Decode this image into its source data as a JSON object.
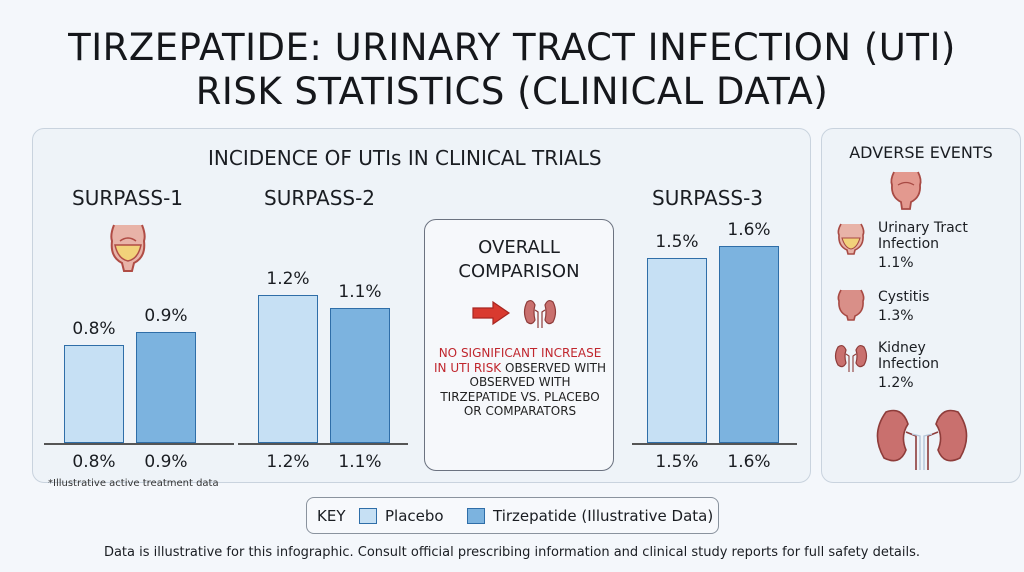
{
  "title_line1": "TIRZEPATIDE: URINARY TRACT INFECTION (UTI)",
  "title_line2": "RISK STATISTICS (CLINICAL DATA)",
  "chart_data": {
    "type": "bar",
    "title": "INCIDENCE OF UTIs IN CLINICAL TRIALS",
    "categories": [
      "SURPASS-1",
      "SURPASS-2",
      "SURPASS-3"
    ],
    "series": [
      {
        "name": "Placebo",
        "values": [
          0.8,
          1.2,
          1.5
        ],
        "labels": [
          "0.8%",
          "1.2%",
          "1.5%"
        ],
        "color": "#c6e0f4"
      },
      {
        "name": "Tirzepatide (Illustrative Data)",
        "values": [
          0.9,
          1.1,
          1.6
        ],
        "labels": [
          "0.9%",
          "1.1%",
          "1.6%"
        ],
        "color": "#7cb3df"
      }
    ],
    "ylim": [
      0,
      2.5
    ],
    "grid": false,
    "legend": "bottom",
    "footnote": "*Illustrative active treatment data"
  },
  "comparison": {
    "title_line1": "OVERALL",
    "title_line2": "COMPARISON",
    "red_text": "NO SIGNIFICANT INCREASE IN UTI RISK",
    "text": "OBSERVED WITH OBSERVED WITH TIRZEPATIDE VS. PLACEBO OR COMPARATORS",
    "icons": [
      "arrow-icon",
      "kidney-icon"
    ]
  },
  "adverse_events": {
    "title": "ADVERSE EVENTS",
    "items": [
      {
        "name_line1": "Urinary Tract",
        "name_line2": "Infection",
        "value": "1.1%",
        "icon": "bladder-icon"
      },
      {
        "name_line1": "Cystitis",
        "name_line2": "",
        "value": "1.3%",
        "icon": "cystitis-icon"
      },
      {
        "name_line1": "Kidney",
        "name_line2": "Infection",
        "value": "1.2%",
        "icon": "kidney-icon"
      }
    ]
  },
  "key": {
    "label": "KEY",
    "placebo": "Placebo",
    "tirzepatide": "Tirzepatide (Illustrative Data)"
  },
  "bottom_note": "Data is illustrative for this infographic. Consult official prescribing information and clinical study reports for full safety details.",
  "colors": {
    "placebo": "#c6e0f4",
    "tirzepatide": "#7cb3df",
    "bar_border": "#2f6ea8",
    "warning_red": "#c0262d",
    "kidney": "#c9706e"
  }
}
